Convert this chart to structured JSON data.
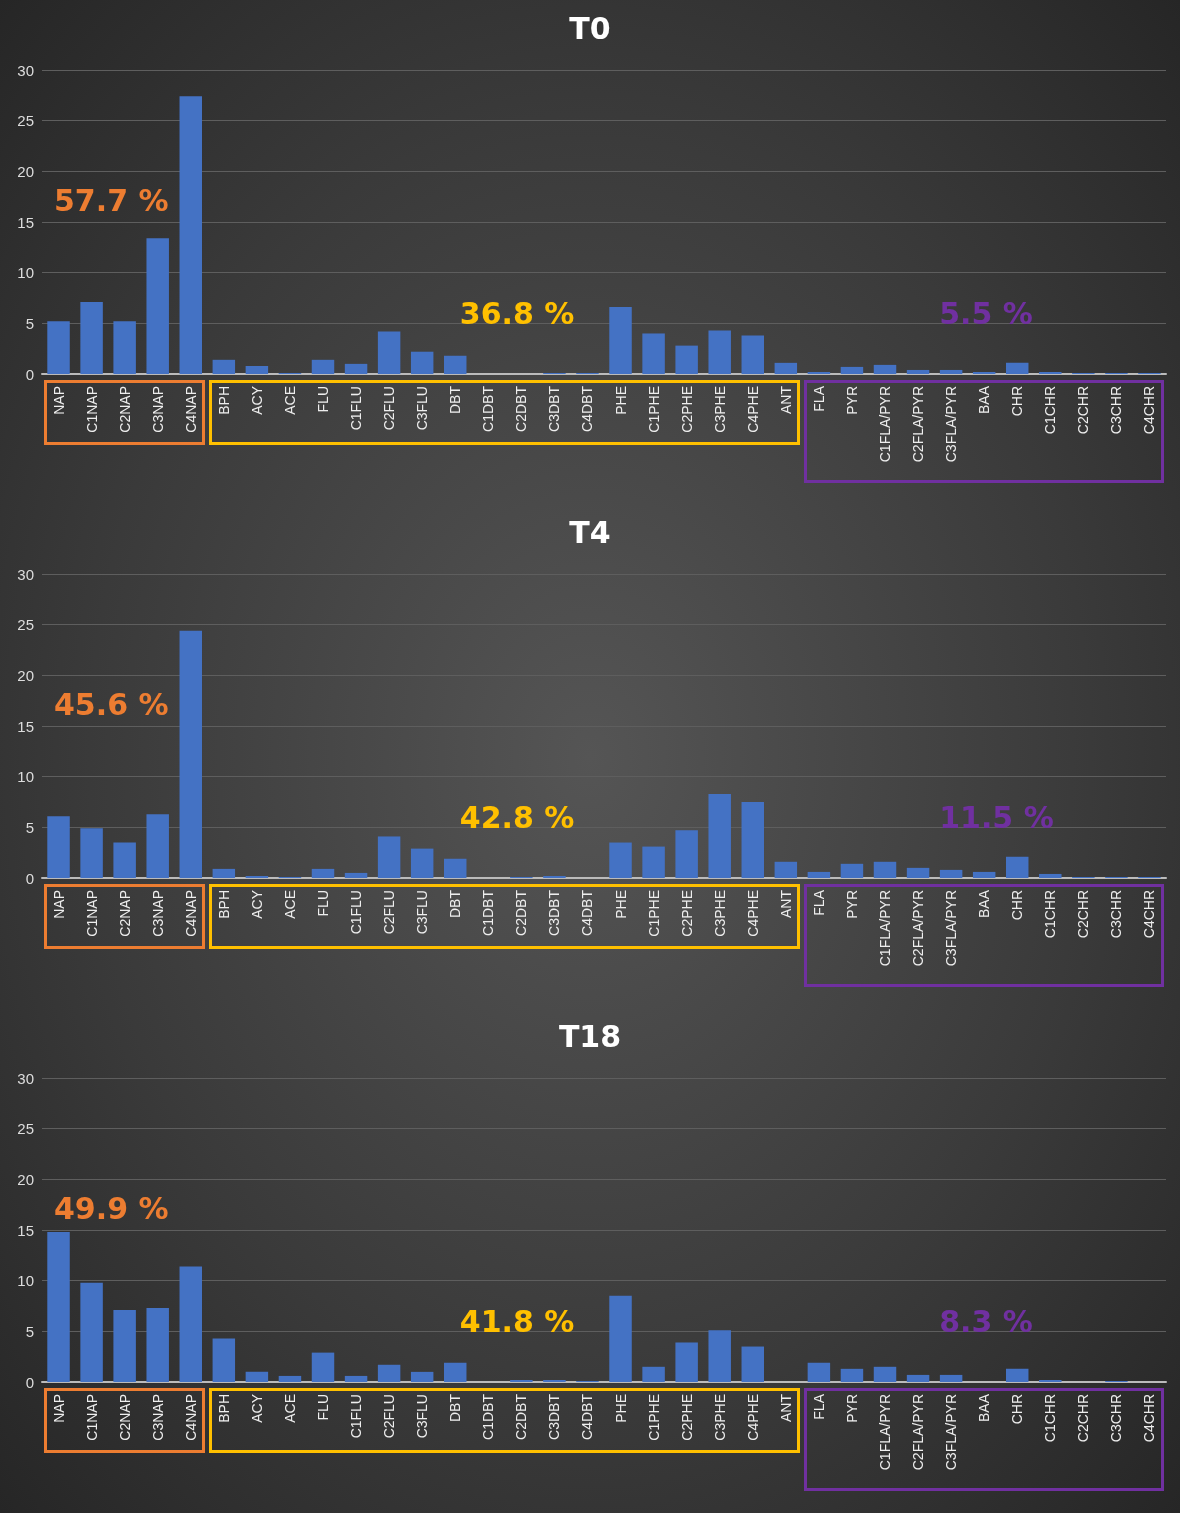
{
  "chart_data": [
    {
      "type": "bar",
      "title": "T0",
      "categories": [
        "NAP",
        "C1NAP",
        "C2NAP",
        "C3NAP",
        "C4NAP",
        "BPH",
        "ACY",
        "ACE",
        "FLU",
        "C1FLU",
        "C2FLU",
        "C3FLU",
        "DBT",
        "C1DBT",
        "C2DBT",
        "C3DBT",
        "C4DBT",
        "PHE",
        "C1PHE",
        "C2PHE",
        "C3PHE",
        "C4PHE",
        "ANT",
        "FLA",
        "PYR",
        "C1FLA/PYR",
        "C2FLA/PYR",
        "C3FLA/PYR",
        "BAA",
        "CHR",
        "C1CHR",
        "C2CHR",
        "C3CHR",
        "C4CHR"
      ],
      "values": [
        5.2,
        7.1,
        5.2,
        13.4,
        27.4,
        1.4,
        0.8,
        0.1,
        1.4,
        1.0,
        4.2,
        2.2,
        1.8,
        0,
        0,
        0.1,
        0.1,
        6.6,
        4.0,
        2.8,
        4.3,
        3.8,
        1.1,
        0.2,
        0.7,
        0.9,
        0.4,
        0.4,
        0.2,
        1.1,
        0.2,
        0.1,
        0.1,
        0.1
      ],
      "color": "#4472c4",
      "ylim": [
        0,
        30
      ],
      "yticks": [
        0,
        5,
        10,
        15,
        20,
        25,
        30
      ],
      "grid": "y",
      "annotations": [
        "57.7 %",
        "36.8 %",
        "5.5 %"
      ]
    },
    {
      "type": "bar",
      "title": "T4",
      "categories": [
        "NAP",
        "C1NAP",
        "C2NAP",
        "C3NAP",
        "C4NAP",
        "BPH",
        "ACY",
        "ACE",
        "FLU",
        "C1FLU",
        "C2FLU",
        "C3FLU",
        "DBT",
        "C1DBT",
        "C2DBT",
        "C3DBT",
        "C4DBT",
        "PHE",
        "C1PHE",
        "C2PHE",
        "C3PHE",
        "C4PHE",
        "ANT",
        "FLA",
        "PYR",
        "C1FLA/PYR",
        "C2FLA/PYR",
        "C3FLA/PYR",
        "BAA",
        "CHR",
        "C1CHR",
        "C2CHR",
        "C3CHR",
        "C4CHR"
      ],
      "values": [
        6.1,
        4.9,
        3.5,
        6.3,
        24.4,
        0.9,
        0.2,
        0.1,
        0.9,
        0.5,
        4.1,
        2.9,
        1.9,
        0,
        0.1,
        0.2,
        0,
        3.5,
        3.1,
        4.7,
        8.3,
        7.5,
        1.6,
        0.6,
        1.4,
        1.6,
        1.0,
        0.8,
        0.6,
        2.1,
        0.4,
        0.1,
        0.1,
        0.1
      ],
      "color": "#4472c4",
      "ylim": [
        0,
        30
      ],
      "yticks": [
        0,
        5,
        10,
        15,
        20,
        25,
        30
      ],
      "grid": "y",
      "annotations": [
        "45.6 %",
        "42.8 %",
        "11.5 %"
      ]
    },
    {
      "type": "bar",
      "title": "T18",
      "categories": [
        "NAP",
        "C1NAP",
        "C2NAP",
        "C3NAP",
        "C4NAP",
        "BPH",
        "ACY",
        "ACE",
        "FLU",
        "C1FLU",
        "C2FLU",
        "C3FLU",
        "DBT",
        "C1DBT",
        "C2DBT",
        "C3DBT",
        "C4DBT",
        "PHE",
        "C1PHE",
        "C2PHE",
        "C3PHE",
        "C4PHE",
        "ANT",
        "FLA",
        "PYR",
        "C1FLA/PYR",
        "C2FLA/PYR",
        "C3FLA/PYR",
        "BAA",
        "CHR",
        "C1CHR",
        "C2CHR",
        "C3CHR",
        "C4CHR"
      ],
      "values": [
        14.8,
        9.8,
        7.1,
        7.3,
        11.4,
        4.3,
        1.0,
        0.6,
        2.9,
        0.6,
        1.7,
        1.0,
        1.9,
        0,
        0.2,
        0.2,
        0.1,
        8.5,
        1.5,
        3.9,
        5.1,
        3.5,
        0,
        1.9,
        1.3,
        1.5,
        0.7,
        0.7,
        0,
        1.3,
        0.2,
        0,
        0.1,
        0
      ],
      "color": "#4472c4",
      "ylim": [
        0,
        30
      ],
      "yticks": [
        0,
        5,
        10,
        15,
        20,
        25,
        30
      ],
      "grid": "y",
      "annotations": [
        "49.9 %",
        "41.8 %",
        "8.3 %"
      ]
    }
  ]
}
